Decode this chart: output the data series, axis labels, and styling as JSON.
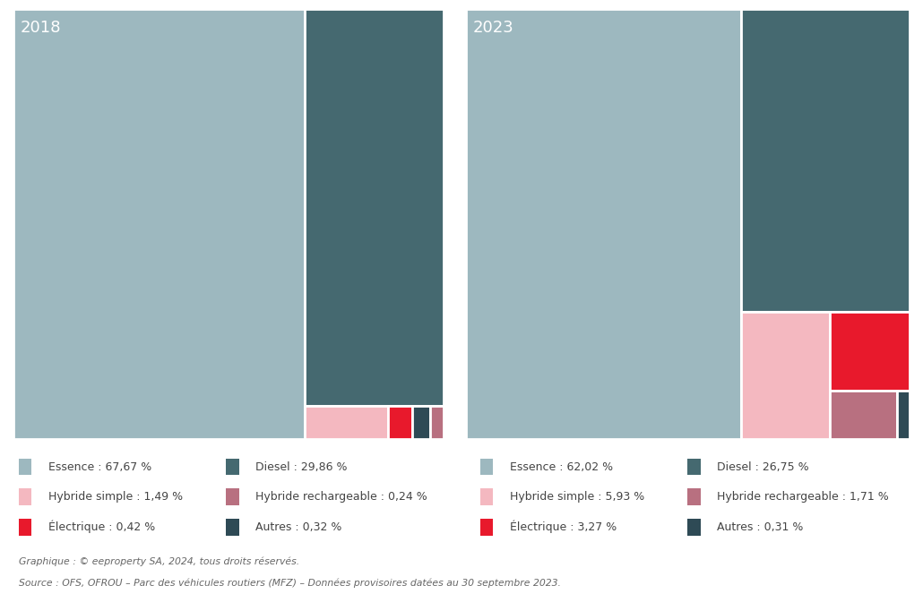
{
  "background_color": "#ffffff",
  "year_label_color": "#ffffff",
  "year_label_fontsize": 13,
  "colors": {
    "Essence": "#9db8bf",
    "Diesel": "#456970",
    "Hybride simple": "#f4b8c0",
    "Hybride rechargeable": "#b87080",
    "Electrique": "#e8192c",
    "Autres": "#2e4a55"
  },
  "data_2018": {
    "year": "2018",
    "Essence": 67.67,
    "Diesel": 29.86,
    "Hybride simple": 1.49,
    "Hybride rechargeable": 0.24,
    "Electrique": 0.42,
    "Autres": 0.32
  },
  "data_2023": {
    "year": "2023",
    "Essence": 62.02,
    "Diesel": 26.75,
    "Hybride simple": 5.93,
    "Hybride rechargeable": 1.71,
    "Electrique": 3.27,
    "Autres": 0.31
  },
  "legend_2018": [
    {
      "label": "Essence : 67,67 %",
      "color": "#9db8bf"
    },
    {
      "label": "Diesel : 29,86 %",
      "color": "#456970"
    },
    {
      "label": "Hybride simple : 1,49 %",
      "color": "#f4b8c0"
    },
    {
      "label": "Hybride rechargeable : 0,24 %",
      "color": "#b87080"
    },
    {
      "label": "Électrique : 0,42 %",
      "color": "#e8192c"
    },
    {
      "label": "Autres : 0,32 %",
      "color": "#2e4a55"
    }
  ],
  "legend_2023": [
    {
      "label": "Essence : 62,02 %",
      "color": "#9db8bf"
    },
    {
      "label": "Diesel : 26,75 %",
      "color": "#456970"
    },
    {
      "label": "Hybride simple : 5,93 %",
      "color": "#f4b8c0"
    },
    {
      "label": "Hybride rechargeable : 1,71 %",
      "color": "#b87080"
    },
    {
      "label": "Électrique : 3,27 %",
      "color": "#e8192c"
    },
    {
      "label": "Autres : 0,31 %",
      "color": "#2e4a55"
    }
  ],
  "source_line1": "Graphique : © eeproperty SA, 2024, tous droits réservés.",
  "source_line2": "Source : OFS, OFROU – Parc des véhicules routiers (MFZ) – Données provisoires datées au 30 septembre 2023."
}
